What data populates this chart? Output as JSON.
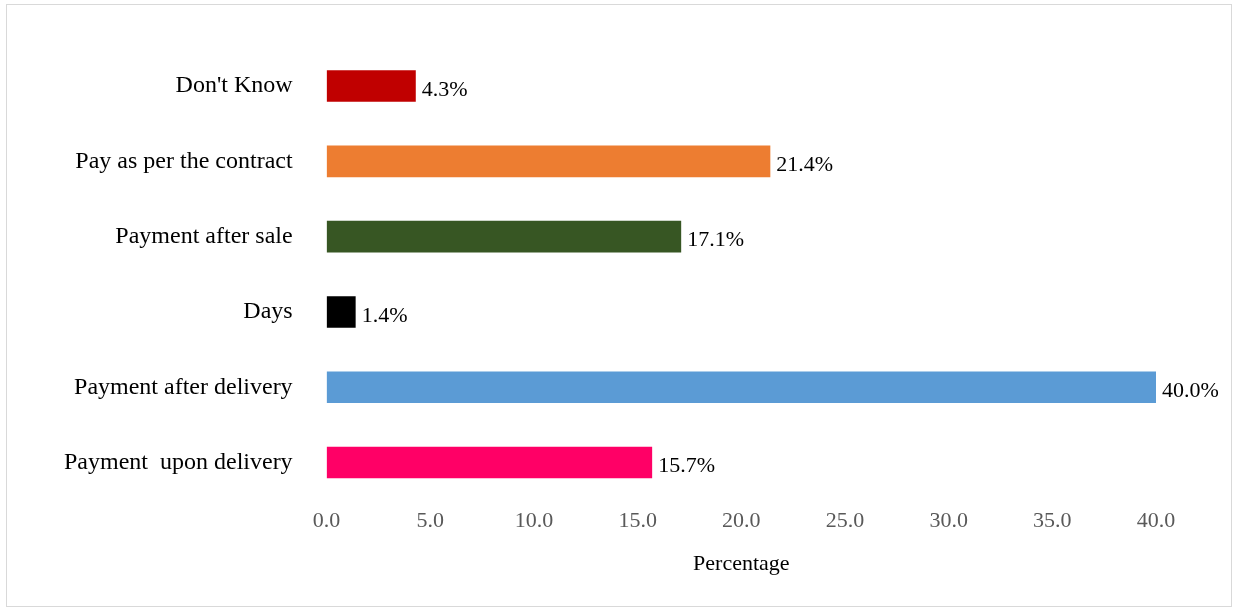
{
  "chart_data": {
    "type": "bar",
    "orientation": "horizontal",
    "xlabel": "Percentage",
    "categories": [
      "Don't Know",
      "Pay as per the contract",
      "Payment after sale",
      "Days",
      "Payment after delivery",
      "Payment  upon delivery"
    ],
    "values": [
      4.3,
      21.4,
      17.1,
      1.4,
      40.0,
      15.7
    ],
    "colors": [
      "#c00000",
      "#ed7d31",
      "#375623",
      "#000000",
      "#5b9bd5",
      "#ff0066"
    ],
    "value_labels": [
      "4.3%",
      "21.4%",
      "17.1%",
      "1.4%",
      "40.0%",
      "15.7%"
    ],
    "xlim": [
      0,
      40
    ],
    "xticks": [
      {
        "value": 0,
        "label": "0.0"
      },
      {
        "value": 5,
        "label": "5.0"
      },
      {
        "value": 10,
        "label": "10.0"
      },
      {
        "value": 15,
        "label": "15.0"
      },
      {
        "value": 20,
        "label": "20.0"
      },
      {
        "value": 25,
        "label": "25.0"
      },
      {
        "value": 30,
        "label": "30.0"
      },
      {
        "value": 35,
        "label": "35.0"
      },
      {
        "value": 40,
        "label": "40.0"
      }
    ],
    "grid": false,
    "legend": false
  }
}
